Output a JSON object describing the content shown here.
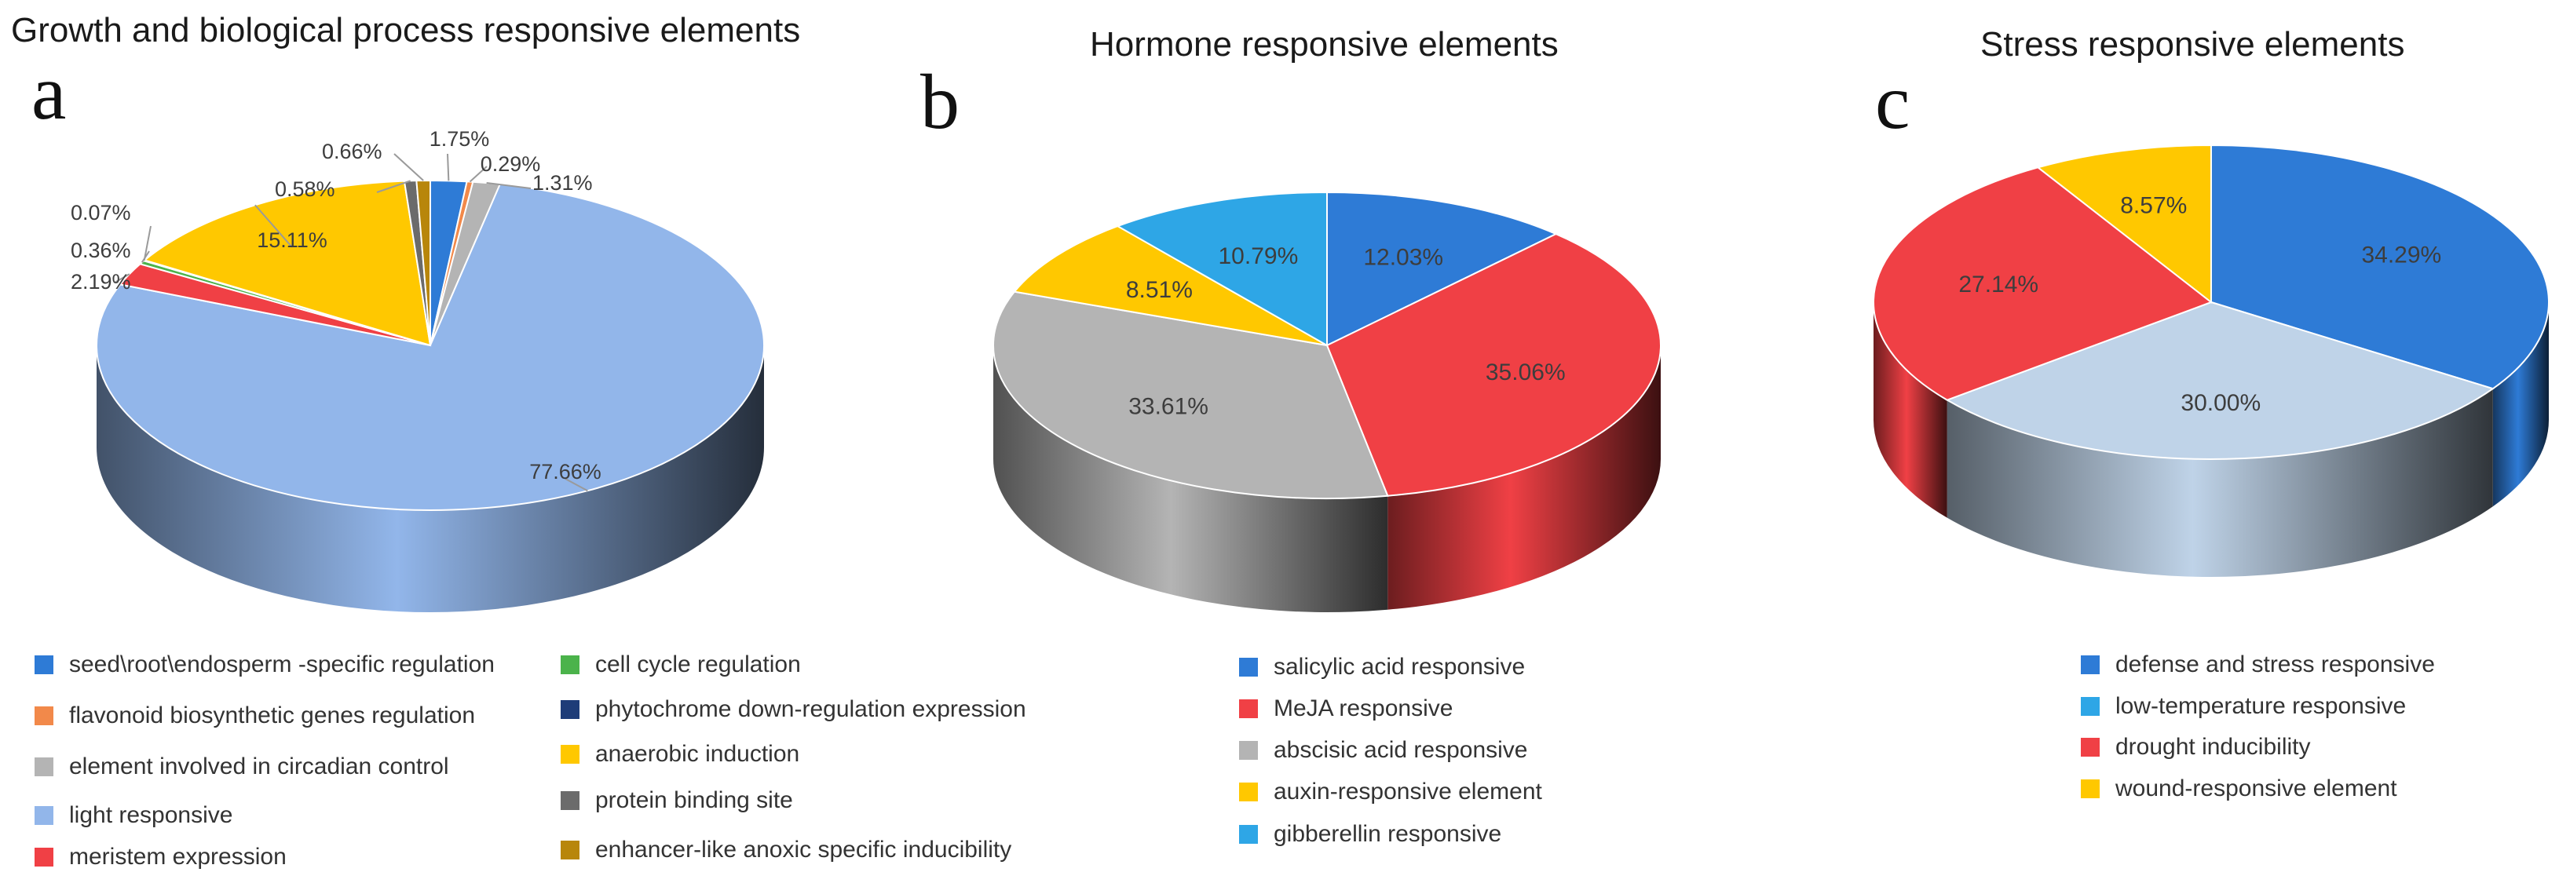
{
  "chart_data": [
    {
      "type": "pie",
      "panel_letter": "a",
      "title": "Growth and biological process responsive elements",
      "slices": [
        {
          "label": "seed\\root\\endosperm -specific regulation",
          "value": 1.75,
          "value_text": "1.75%",
          "color": "#2E7BD6"
        },
        {
          "label": "flavonoid biosynthetic genes regulation",
          "value": 0.29,
          "value_text": "0.29%",
          "color": "#F2894A"
        },
        {
          "label": "element involved in circadian control",
          "value": 1.31,
          "value_text": "1.31%",
          "color": "#B4B4B4"
        },
        {
          "label": "light responsive",
          "value": 77.66,
          "value_text": "77.66%",
          "color": "#92B6EA"
        },
        {
          "label": "meristem expression",
          "value": 2.19,
          "value_text": "2.19%",
          "color": "#F04045"
        },
        {
          "label": "cell cycle regulation",
          "value": 0.36,
          "value_text": "0.36%",
          "color": "#4BB34B"
        },
        {
          "label": "phytochrome down-regulation  expression",
          "value": 0.07,
          "value_text": "0.07%",
          "color": "#1E3C78"
        },
        {
          "label": "anaerobic induction",
          "value": 15.11,
          "value_text": "15.11%",
          "color": "#FFC800"
        },
        {
          "label": "protein binding site",
          "value": 0.58,
          "value_text": "0.58%",
          "color": "#6B6B6B"
        },
        {
          "label": "enhancer-like anoxic specific inducibility",
          "value": 0.66,
          "value_text": "0.66%",
          "color": "#B8860B"
        }
      ]
    },
    {
      "type": "pie",
      "panel_letter": "b",
      "title": "Hormone responsive elements",
      "slices": [
        {
          "label": "salicylic acid responsive",
          "value": 12.03,
          "value_text": "12.03%",
          "color": "#2E7BD6"
        },
        {
          "label": "MeJA responsive",
          "value": 35.06,
          "value_text": "35.06%",
          "color": "#F04045"
        },
        {
          "label": "abscisic acid responsive",
          "value": 33.61,
          "value_text": "33.61%",
          "color": "#B4B4B4"
        },
        {
          "label": "auxin-responsive element",
          "value": 8.51,
          "value_text": "8.51%",
          "color": "#FFC800"
        },
        {
          "label": "gibberellin responsive",
          "value": 10.79,
          "value_text": "10.79%",
          "color": "#2EA6E6"
        }
      ]
    },
    {
      "type": "pie",
      "panel_letter": "c",
      "title": "Stress responsive elements",
      "slices": [
        {
          "label": "defense and stress responsive",
          "value": 34.29,
          "value_text": "34.29%",
          "color": "#2E7BD6"
        },
        {
          "label": "low-temperature responsive",
          "value": 30.0,
          "value_text": "30.00%",
          "color": "#BFD3E8"
        },
        {
          "label": "drought inducibility",
          "value": 27.14,
          "value_text": "27.14%",
          "color": "#F04045"
        },
        {
          "label": "wound-responsive element",
          "value": 8.57,
          "value_text": "8.57%",
          "color": "#FFC800"
        }
      ],
      "legend_colors": [
        "#2E7BD6",
        "#2EA6E6",
        "#F04045",
        "#FFC800"
      ]
    }
  ]
}
